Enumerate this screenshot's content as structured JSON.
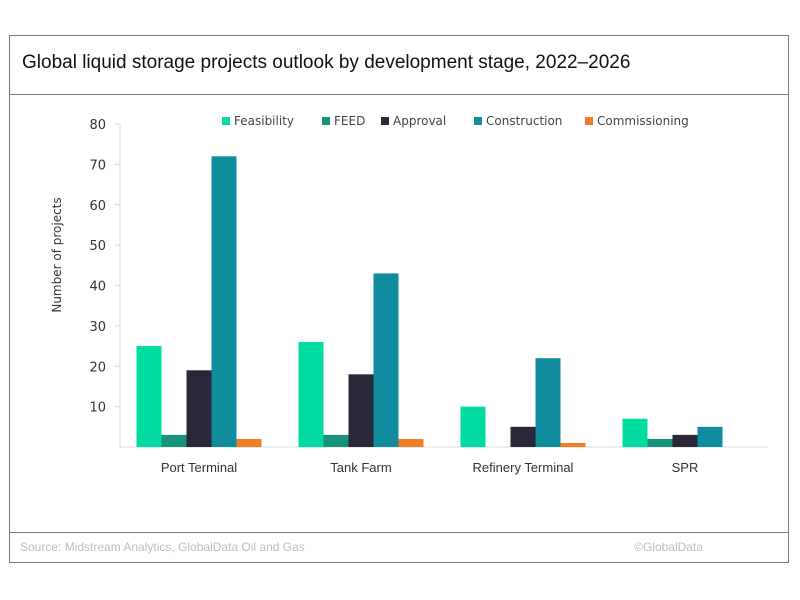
{
  "header": {
    "title": "Global liquid storage projects outlook by development stage, 2022–2026"
  },
  "footer": {
    "source": "Source: Midstream Analytics, GlobalData Oil and Gas",
    "copyright": "©GlobalData"
  },
  "chart_data": {
    "type": "bar",
    "title": "Global liquid storage projects outlook by development stage, 2022–2026",
    "xlabel": "",
    "ylabel": "Number of projects",
    "ylim": [
      0,
      80
    ],
    "yticks": [
      10,
      20,
      30,
      40,
      50,
      60,
      70,
      80
    ],
    "grid": false,
    "legend_position": "top",
    "categories": [
      "Port Terminal",
      "Tank Farm",
      "Refinery Terminal",
      "SPR"
    ],
    "series": [
      {
        "name": "Feasibility",
        "color": "#00DCA0",
        "values": [
          25,
          26,
          10,
          7
        ]
      },
      {
        "name": "FEED",
        "color": "#16937A",
        "values": [
          3,
          3,
          0,
          2
        ]
      },
      {
        "name": "Approval",
        "color": "#2A2838",
        "values": [
          19,
          18,
          5,
          3
        ]
      },
      {
        "name": "Construction",
        "color": "#118C9E",
        "values": [
          72,
          43,
          22,
          5
        ]
      },
      {
        "name": "Commissioning",
        "color": "#F07D28",
        "values": [
          2,
          2,
          1,
          0
        ]
      }
    ]
  }
}
